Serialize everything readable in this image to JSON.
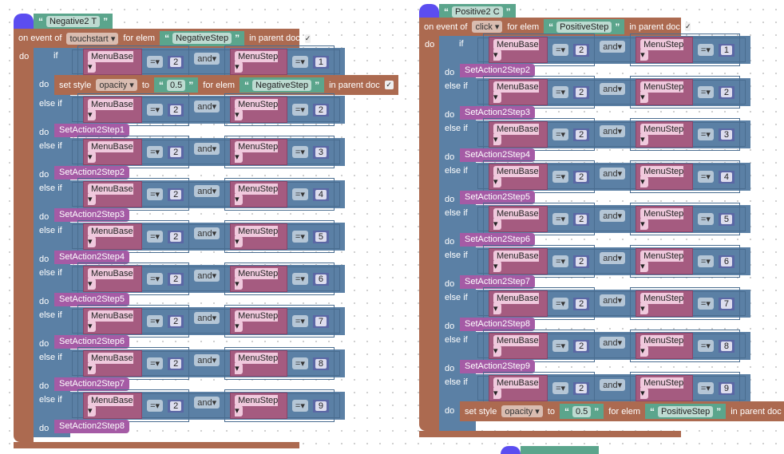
{
  "stacks": [
    {
      "hat_label": "Negative2 T",
      "event_prefix": "on event of",
      "event": "touchstart",
      "for_elem": "for elem",
      "elem": "NegativeStep",
      "in_parent_doc": "in parent doc",
      "do": "do",
      "branches": [
        {
          "keyword": "if",
          "base_var": "MenuBase",
          "op": "=",
          "base_val": "2",
          "and": "and",
          "step_var": "MenuStep",
          "step_op": "=",
          "step_val": "1",
          "do": "do",
          "action": {
            "type": "set_style",
            "set_style": "set style",
            "prop": "opacity",
            "to": "to",
            "value": "0.5",
            "for_elem": "for elem",
            "elem": "NegativeStep",
            "in_parent_doc": "in parent doc"
          }
        },
        {
          "keyword": "else if",
          "base_var": "MenuBase",
          "op": "=",
          "base_val": "2",
          "and": "and",
          "step_var": "MenuStep",
          "step_op": "=",
          "step_val": "2",
          "do": "do",
          "action": {
            "type": "call",
            "name": "SetAction2Step1"
          }
        },
        {
          "keyword": "else if",
          "base_var": "MenuBase",
          "op": "=",
          "base_val": "2",
          "and": "and",
          "step_var": "MenuStep",
          "step_op": "=",
          "step_val": "3",
          "do": "do",
          "action": {
            "type": "call",
            "name": "SetAction2Step2"
          }
        },
        {
          "keyword": "else if",
          "base_var": "MenuBase",
          "op": "=",
          "base_val": "2",
          "and": "and",
          "step_var": "MenuStep",
          "step_op": "=",
          "step_val": "4",
          "do": "do",
          "action": {
            "type": "call",
            "name": "SetAction2Step3"
          }
        },
        {
          "keyword": "else if",
          "base_var": "MenuBase",
          "op": "=",
          "base_val": "2",
          "and": "and",
          "step_var": "MenuStep",
          "step_op": "=",
          "step_val": "5",
          "do": "do",
          "action": {
            "type": "call",
            "name": "SetAction2Step4"
          }
        },
        {
          "keyword": "else if",
          "base_var": "MenuBase",
          "op": "=",
          "base_val": "2",
          "and": "and",
          "step_var": "MenuStep",
          "step_op": "=",
          "step_val": "6",
          "do": "do",
          "action": {
            "type": "call",
            "name": "SetAction2Step5"
          }
        },
        {
          "keyword": "else if",
          "base_var": "MenuBase",
          "op": "=",
          "base_val": "2",
          "and": "and",
          "step_var": "MenuStep",
          "step_op": "=",
          "step_val": "7",
          "do": "do",
          "action": {
            "type": "call",
            "name": "SetAction2Step6"
          }
        },
        {
          "keyword": "else if",
          "base_var": "MenuBase",
          "op": "=",
          "base_val": "2",
          "and": "and",
          "step_var": "MenuStep",
          "step_op": "=",
          "step_val": "8",
          "do": "do",
          "action": {
            "type": "call",
            "name": "SetAction2Step7"
          }
        },
        {
          "keyword": "else if",
          "base_var": "MenuBase",
          "op": "=",
          "base_val": "2",
          "and": "and",
          "step_var": "MenuStep",
          "step_op": "=",
          "step_val": "9",
          "do": "do",
          "action": {
            "type": "call",
            "name": "SetAction2Step8"
          }
        }
      ]
    },
    {
      "hat_label": "Positive2 C",
      "event_prefix": "on event of",
      "event": "click",
      "for_elem": "for elem",
      "elem": "PositiveStep",
      "in_parent_doc": "in parent doc",
      "do": "do",
      "branches": [
        {
          "keyword": "if",
          "base_var": "MenuBase",
          "op": "=",
          "base_val": "2",
          "and": "and",
          "step_var": "MenuStep",
          "step_op": "=",
          "step_val": "1",
          "do": "do",
          "action": {
            "type": "call",
            "name": "SetAction2Step2"
          }
        },
        {
          "keyword": "else if",
          "base_var": "MenuBase",
          "op": "=",
          "base_val": "2",
          "and": "and",
          "step_var": "MenuStep",
          "step_op": "=",
          "step_val": "2",
          "do": "do",
          "action": {
            "type": "call",
            "name": "SetAction2Step3"
          }
        },
        {
          "keyword": "else if",
          "base_var": "MenuBase",
          "op": "=",
          "base_val": "2",
          "and": "and",
          "step_var": "MenuStep",
          "step_op": "=",
          "step_val": "3",
          "do": "do",
          "action": {
            "type": "call",
            "name": "SetAction2Step4"
          }
        },
        {
          "keyword": "else if",
          "base_var": "MenuBase",
          "op": "=",
          "base_val": "2",
          "and": "and",
          "step_var": "MenuStep",
          "step_op": "=",
          "step_val": "4",
          "do": "do",
          "action": {
            "type": "call",
            "name": "SetAction2Step5"
          }
        },
        {
          "keyword": "else if",
          "base_var": "MenuBase",
          "op": "=",
          "base_val": "2",
          "and": "and",
          "step_var": "MenuStep",
          "step_op": "=",
          "step_val": "5",
          "do": "do",
          "action": {
            "type": "call",
            "name": "SetAction2Step6"
          }
        },
        {
          "keyword": "else if",
          "base_var": "MenuBase",
          "op": "=",
          "base_val": "2",
          "and": "and",
          "step_var": "MenuStep",
          "step_op": "=",
          "step_val": "6",
          "do": "do",
          "action": {
            "type": "call",
            "name": "SetAction2Step7"
          }
        },
        {
          "keyword": "else if",
          "base_var": "MenuBase",
          "op": "=",
          "base_val": "2",
          "and": "and",
          "step_var": "MenuStep",
          "step_op": "=",
          "step_val": "7",
          "do": "do",
          "action": {
            "type": "call",
            "name": "SetAction2Step8"
          }
        },
        {
          "keyword": "else if",
          "base_var": "MenuBase",
          "op": "=",
          "base_val": "2",
          "and": "and",
          "step_var": "MenuStep",
          "step_op": "=",
          "step_val": "8",
          "do": "do",
          "action": {
            "type": "call",
            "name": "SetAction2Step9"
          }
        },
        {
          "keyword": "else if",
          "base_var": "MenuBase",
          "op": "=",
          "base_val": "2",
          "and": "and",
          "step_var": "MenuStep",
          "step_op": "=",
          "step_val": "9",
          "do": "do",
          "action": {
            "type": "set_style",
            "set_style": "set style",
            "prop": "opacity",
            "to": "to",
            "value": "0.5",
            "for_elem": "for elem",
            "elem": "PositiveStep",
            "in_parent_doc": "in parent doc"
          }
        }
      ]
    }
  ],
  "colors": {
    "event": "#ac6a50",
    "logic": "#5b80a5",
    "variable": "#a55b80",
    "text": "#5ba58c",
    "procedure": "#a55ba5",
    "number": "#5b67a5",
    "hat": "#5b4df0"
  }
}
